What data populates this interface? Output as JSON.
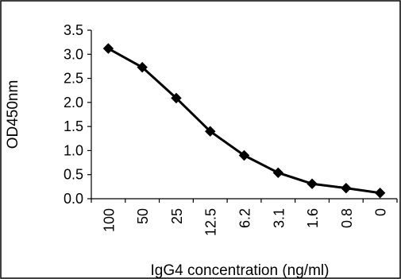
{
  "chart_data": {
    "type": "line",
    "title": "",
    "xlabel": "IgG4 concentration (ng/ml)",
    "ylabel": "OD450nm",
    "categories": [
      "100",
      "50",
      "25",
      "12.5",
      "6.2",
      "3.1",
      "1.6",
      "0.8",
      "0"
    ],
    "series": [
      {
        "values": [
          3.12,
          2.73,
          2.09,
          1.4,
          0.9,
          0.54,
          0.31,
          0.22,
          0.12
        ],
        "color": "#000000",
        "marker": "diamond"
      }
    ],
    "ylim": [
      0,
      3.5
    ],
    "yticks": [
      "0.0",
      "0.5",
      "1.0",
      "1.5",
      "2.0",
      "2.5",
      "3.0",
      "3.5"
    ],
    "grid": false,
    "legend": "none"
  }
}
